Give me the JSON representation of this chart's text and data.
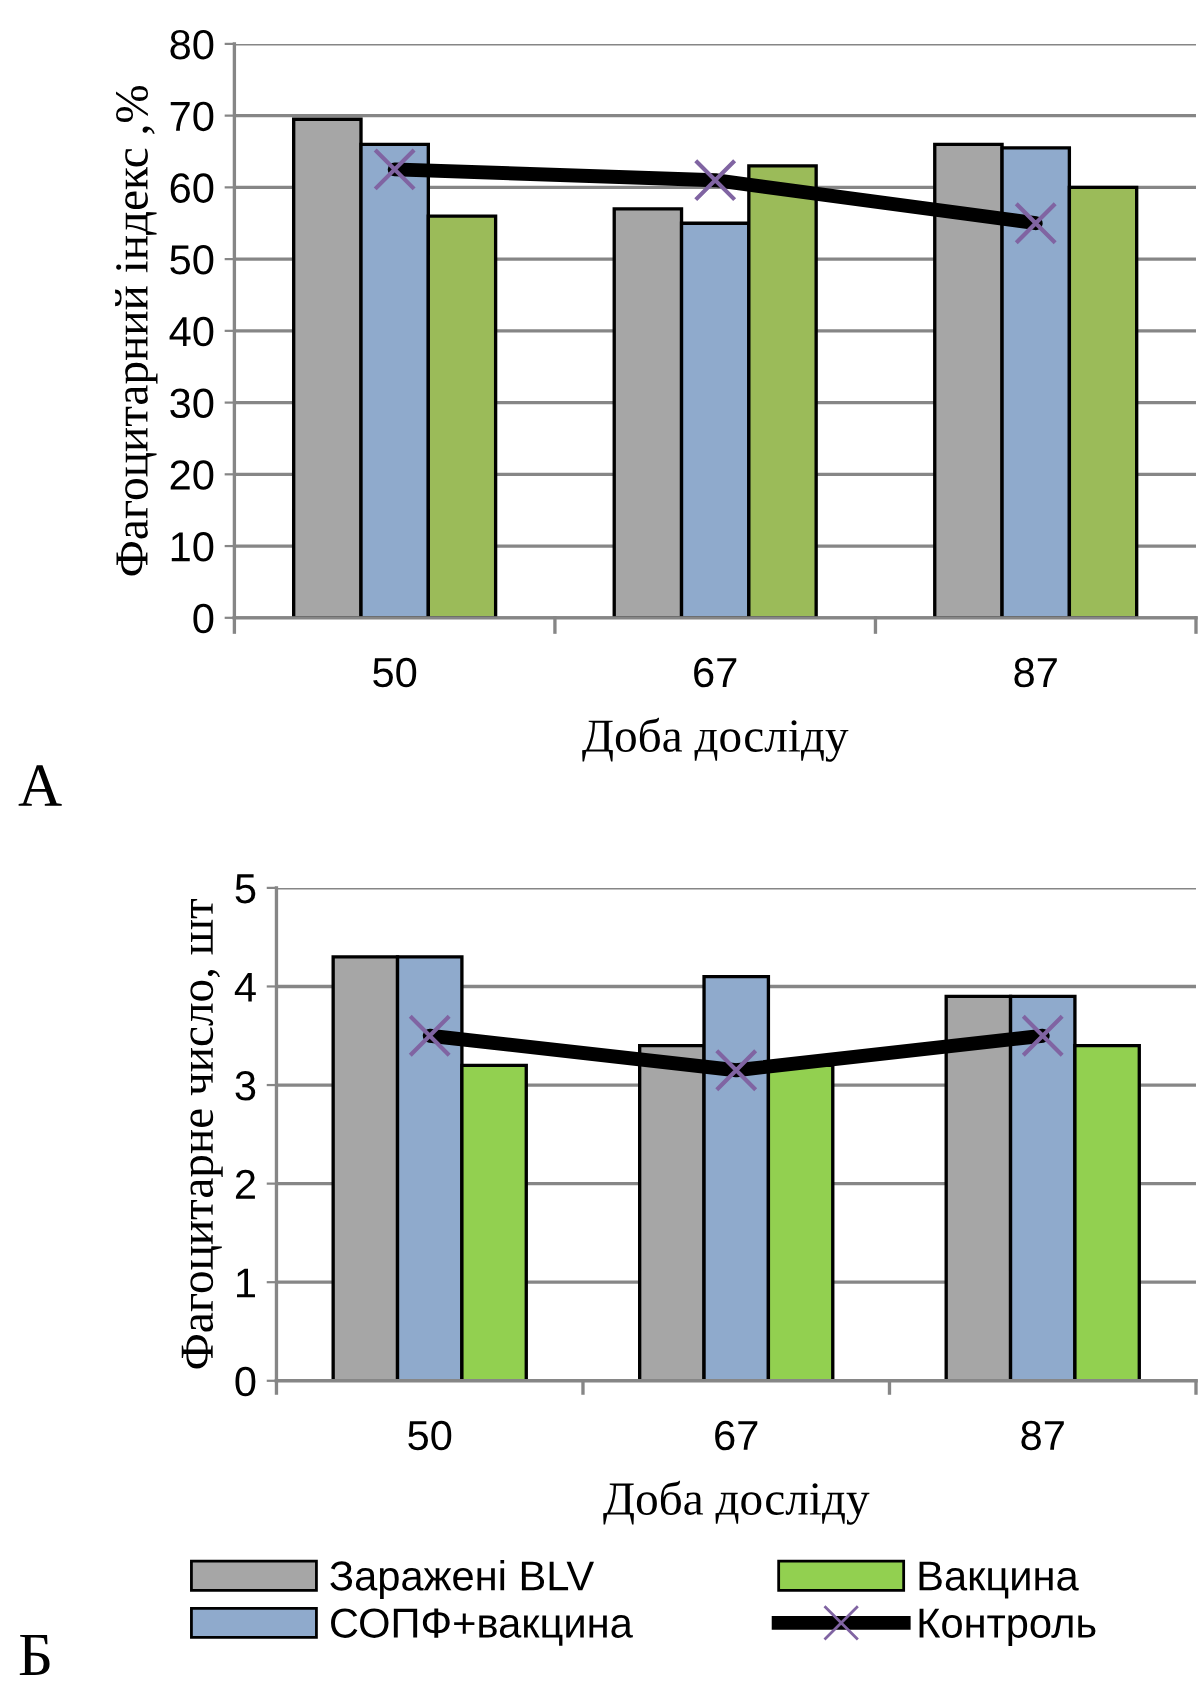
{
  "chart_data": [
    {
      "type": "bar",
      "categories": [
        "50",
        "67",
        "87"
      ],
      "xlabel": "Доба досліду",
      "ylabel": "Фагоцитарний індекс ,%",
      "ylim": [
        0,
        80
      ],
      "yticks": [
        0,
        10,
        20,
        30,
        40,
        50,
        60,
        70,
        80
      ],
      "grid": "y",
      "annotations": [
        "А"
      ],
      "series": [
        {
          "color": "#a6a6a6",
          "values": [
            69.5,
            57,
            66
          ]
        },
        {
          "color": "#8faacc",
          "values": [
            66,
            55,
            65.5
          ]
        },
        {
          "color": "#9bbb59",
          "values": [
            56,
            63,
            60
          ]
        },
        {
          "type": "line",
          "color": "#000000",
          "marker": "cross",
          "values": [
            62.5,
            61,
            55
          ]
        }
      ]
    },
    {
      "type": "bar",
      "categories": [
        "50",
        "67",
        "87"
      ],
      "xlabel": "Доба досліду",
      "ylabel": "Фагоцитарне число, шт",
      "ylim": [
        0,
        5
      ],
      "yticks": [
        0,
        1,
        2,
        3,
        4,
        5
      ],
      "grid": "y",
      "legend": "bottom",
      "annotations": [
        "Б"
      ],
      "series": [
        {
          "name": "Заражені BLV",
          "color": "#a6a6a6",
          "values": [
            4.3,
            3.4,
            3.9
          ]
        },
        {
          "name": "СОПФ+вакцина",
          "color": "#8faacc",
          "values": [
            4.3,
            4.1,
            3.9
          ]
        },
        {
          "name": "Вакцина",
          "color": "#92d050",
          "values": [
            3.2,
            3.2,
            3.4
          ]
        },
        {
          "name": "Контроль",
          "type": "line",
          "color": "#000000",
          "marker": "cross",
          "values": [
            3.5,
            3.15,
            3.5
          ]
        }
      ]
    }
  ]
}
